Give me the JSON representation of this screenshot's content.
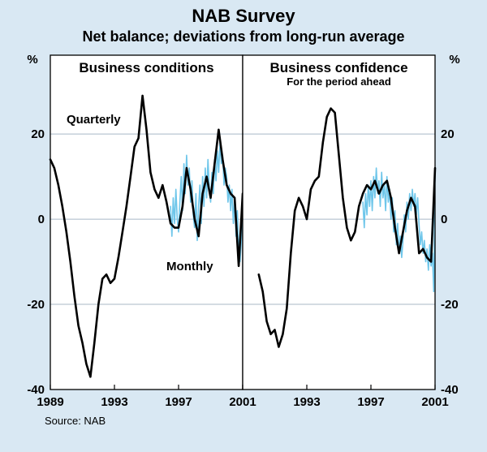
{
  "title": "NAB Survey",
  "subtitle": "Net balance; deviations from long-run average",
  "unit_left": "%",
  "unit_right": "%",
  "source": "Source: NAB",
  "colors": {
    "bg": "#d9e8f3",
    "plot_bg": "#ffffff",
    "grid": "#a8b8c6",
    "axis": "#000000",
    "quarterly": "#000000",
    "monthly": "#6ec6ea"
  },
  "chart_data": [
    {
      "type": "line",
      "panel": "left",
      "title": "Business conditions",
      "subtitle": "",
      "xlim": [
        1989,
        2001
      ],
      "ylim": [
        -40,
        38.5
      ],
      "y_ticks": [
        20,
        0,
        -20,
        -40
      ],
      "y_label_side": "left",
      "x_ticks": [
        1989,
        1993,
        1997,
        2001
      ],
      "x_tick_labels": [
        "1989",
        "1993",
        "1997",
        "2001"
      ],
      "annotations": [
        {
          "text": "Quarterly",
          "x": 1991.7,
          "y": 22.5
        },
        {
          "text": "Monthly",
          "x": 1997.7,
          "y": -12
        }
      ],
      "series": [
        {
          "name": "Monthly",
          "color_key": "monthly",
          "width": 1.6,
          "z": 0,
          "x_start": 1996.5,
          "x_step": 0.0833333,
          "values": [
            3,
            -4,
            5,
            -1,
            7,
            0,
            -3,
            4,
            10,
            2,
            13,
            6,
            15,
            8,
            12,
            4,
            9,
            1,
            -2,
            6,
            -5,
            3,
            8,
            -1,
            10,
            3,
            12,
            5,
            14,
            7,
            4,
            11,
            6,
            14,
            9,
            16,
            11,
            18,
            13,
            15,
            8,
            12,
            10,
            4,
            8,
            2,
            7,
            -1,
            5,
            -4,
            2,
            -7,
            -10,
            -5,
            6
          ]
        },
        {
          "name": "Quarterly",
          "color_key": "quarterly",
          "width": 2.6,
          "z": 1,
          "x_start": 1989.0,
          "x_step": 0.25,
          "values": [
            14,
            12,
            8,
            3,
            -3,
            -10,
            -18,
            -25,
            -29,
            -34,
            -37,
            -29,
            -20,
            -14,
            -13,
            -15,
            -14,
            -9,
            -3,
            3,
            10,
            17,
            19,
            29,
            21,
            11,
            7,
            5,
            8,
            4,
            -1,
            -2,
            -2,
            3,
            12,
            7,
            0,
            -4,
            6,
            10,
            5,
            13,
            21,
            14,
            8,
            6,
            5,
            -11,
            6
          ]
        }
      ]
    },
    {
      "type": "line",
      "panel": "right",
      "title": "Business confidence",
      "subtitle": "For the period ahead",
      "xlim": [
        1989,
        2001
      ],
      "ylim": [
        -40,
        38.5
      ],
      "y_ticks": [
        20,
        0,
        -20,
        -40
      ],
      "y_label_side": "right",
      "x_ticks": [
        1989,
        1993,
        1997,
        2001
      ],
      "x_tick_labels": [
        "",
        "1993",
        "1997",
        "2001"
      ],
      "annotations": [],
      "series": [
        {
          "name": "Monthly",
          "color_key": "monthly",
          "width": 1.6,
          "z": 0,
          "x_start": 1996.5,
          "x_step": 0.0833333,
          "values": [
            4,
            -2,
            6,
            1,
            8,
            3,
            9,
            2,
            10,
            5,
            12,
            6,
            9,
            3,
            11,
            5,
            8,
            2,
            10,
            4,
            7,
            0,
            5,
            -3,
            2,
            -6,
            -1,
            -8,
            -4,
            -9,
            -5,
            1,
            -3,
            4,
            0,
            6,
            2,
            7,
            3,
            6,
            1,
            5,
            -1,
            -6,
            -3,
            -8,
            -5,
            -10,
            -7,
            -12,
            -6,
            -11,
            -8,
            -17,
            12
          ]
        },
        {
          "name": "Quarterly",
          "color_key": "quarterly",
          "width": 2.6,
          "z": 1,
          "x_start": 1990.0,
          "x_step": 0.25,
          "values": [
            -13,
            -17,
            -24,
            -27,
            -26,
            -30,
            -27,
            -21,
            -8,
            2,
            5,
            3,
            0,
            7,
            9,
            10,
            18,
            24,
            26,
            25,
            15,
            5,
            -2,
            -5,
            -3,
            3,
            6,
            8,
            7,
            9,
            6,
            8,
            9,
            5,
            -2,
            -8,
            -3,
            2,
            5,
            3,
            -8,
            -7,
            -9,
            -10,
            12
          ]
        }
      ]
    }
  ]
}
